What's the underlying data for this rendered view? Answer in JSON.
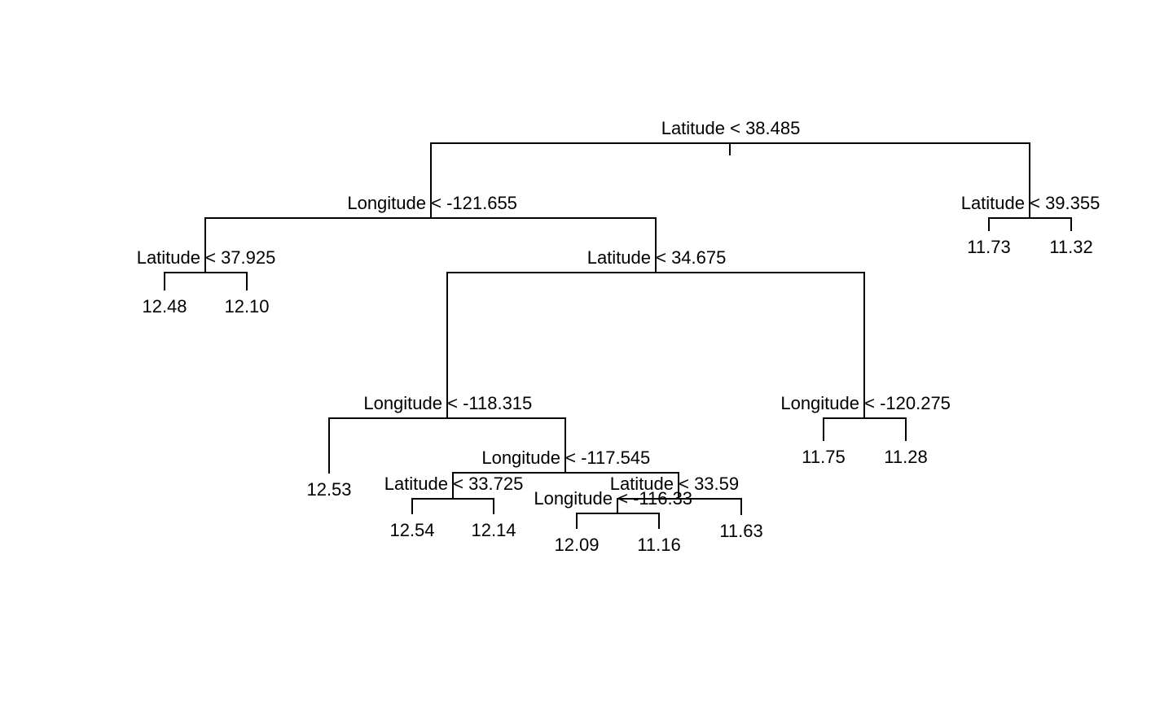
{
  "tree": {
    "id": "root",
    "split": "Latitude < 38.485",
    "left": {
      "id": "n1",
      "split": "Longitude < -121.655",
      "left": {
        "id": "n2",
        "split": "Latitude < 37.925",
        "left": {
          "id": "l1",
          "value": "12.48"
        },
        "right": {
          "id": "l2",
          "value": "12.10"
        }
      },
      "right": {
        "id": "n3",
        "split": "Latitude < 34.675",
        "left": {
          "id": "n4",
          "split": "Longitude < -118.315",
          "left": {
            "id": "l3",
            "value": "12.53"
          },
          "right": {
            "id": "n5",
            "split": "Longitude < -117.545",
            "left": {
              "id": "n6",
              "split": "Latitude < 33.725",
              "left": {
                "id": "l4",
                "value": "12.54"
              },
              "right": {
                "id": "l5",
                "value": "12.14"
              }
            },
            "right": {
              "id": "n7",
              "split": "Latitude < 33.59",
              "left": {
                "id": "n8",
                "split": "Longitude < -116.33",
                "left": {
                  "id": "l6",
                  "value": "12.09"
                },
                "right": {
                  "id": "l7",
                  "value": "11.16"
                }
              },
              "right": {
                "id": "l8",
                "value": "11.63"
              }
            }
          }
        },
        "right": {
          "id": "n9",
          "split": "Longitude < -120.275",
          "left": {
            "id": "l9",
            "value": "11.75"
          },
          "right": {
            "id": "l10",
            "value": "11.28"
          }
        }
      }
    },
    "right": {
      "id": "n10",
      "split": "Latitude < 39.355",
      "left": {
        "id": "l11",
        "value": "11.73"
      },
      "right": {
        "id": "l12",
        "value": "11.32"
      }
    }
  }
}
